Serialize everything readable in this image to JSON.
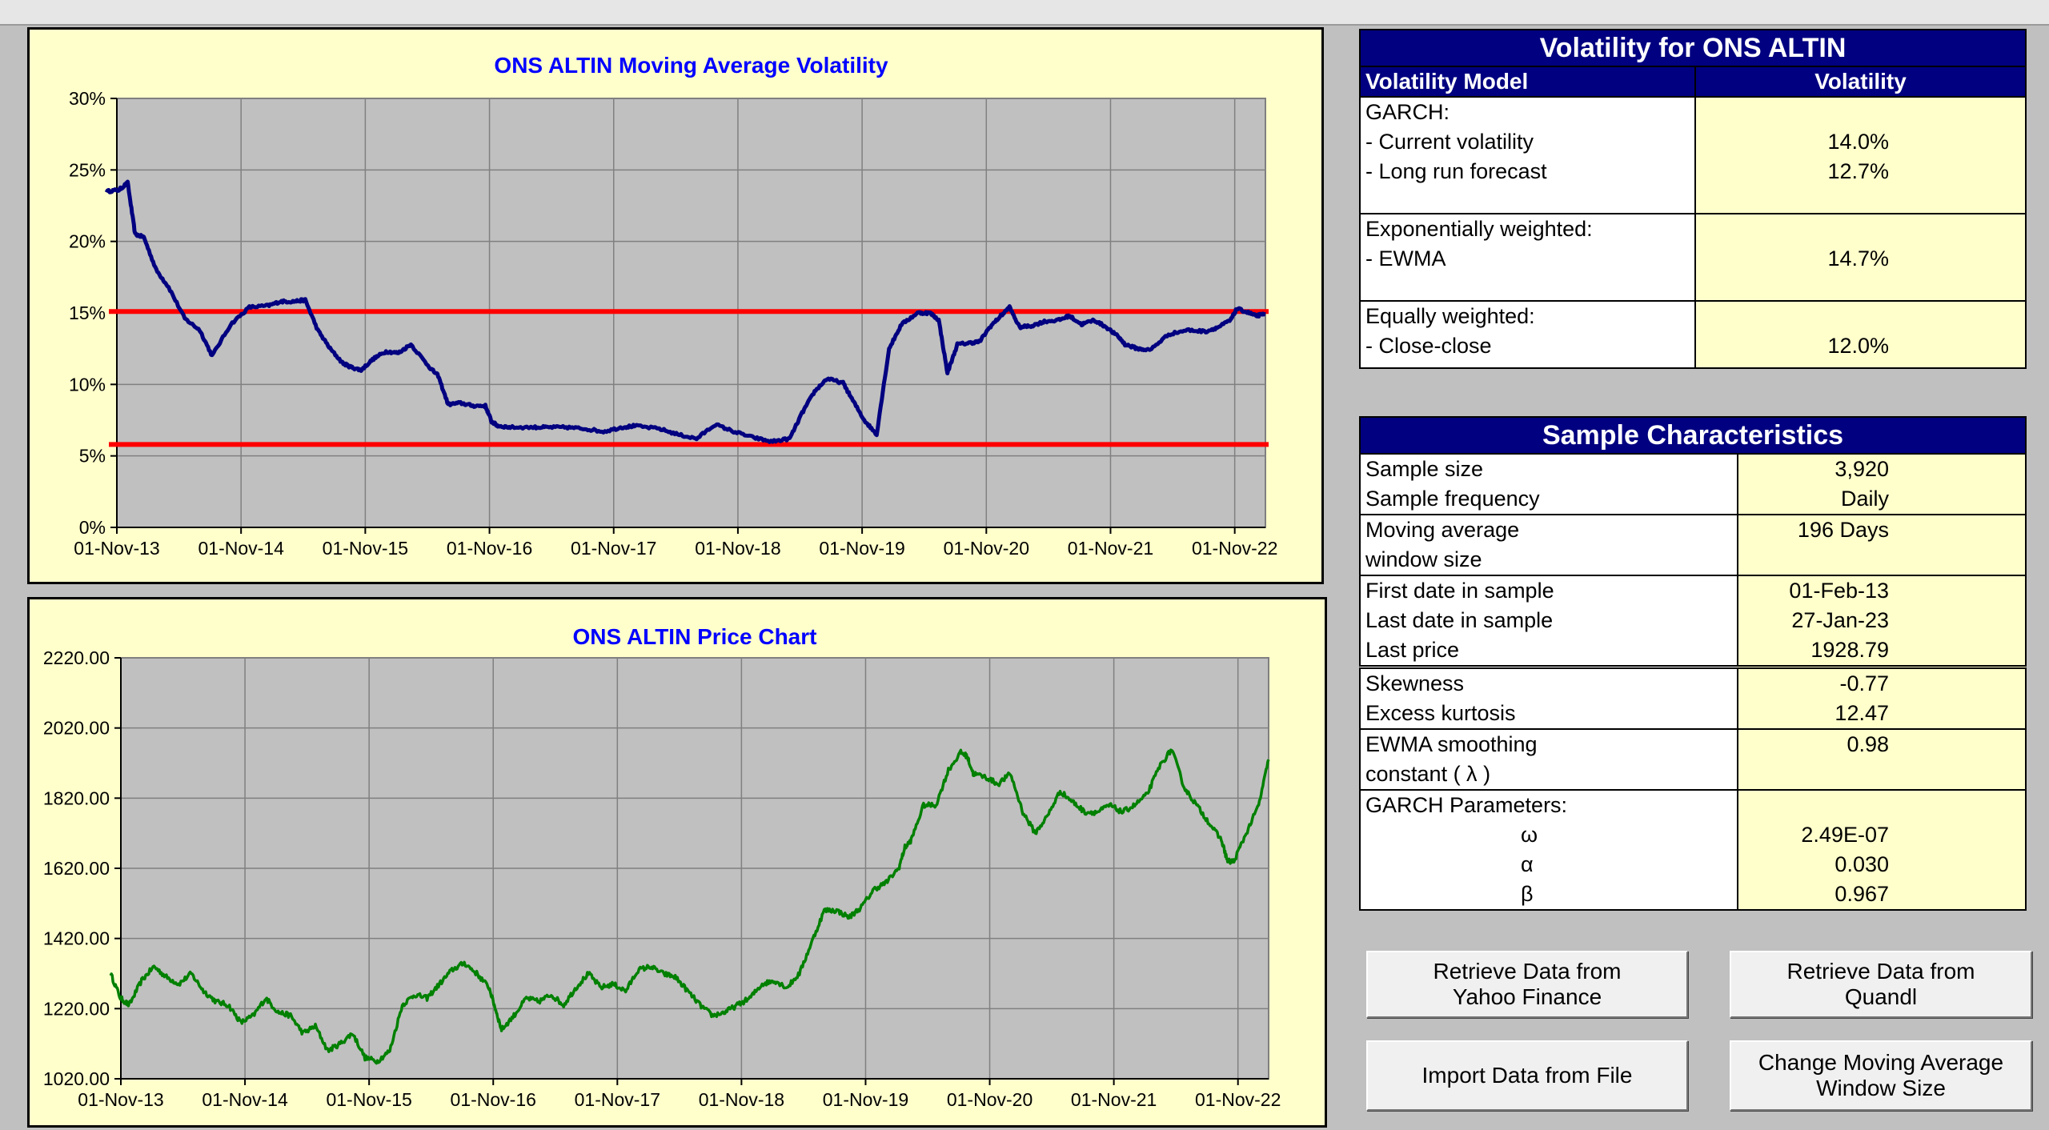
{
  "vol_chart": {
    "title": "ONS ALTIN Moving Average Volatility",
    "y_ticks": [
      "30%",
      "25%",
      "20%",
      "15%",
      "10%",
      "5%",
      "0%"
    ],
    "x_ticks": [
      "01-Nov-13",
      "01-Nov-14",
      "01-Nov-15",
      "01-Nov-16",
      "01-Nov-17",
      "01-Nov-18",
      "01-Nov-19",
      "01-Nov-20",
      "01-Nov-21",
      "01-Nov-22"
    ]
  },
  "price_chart": {
    "title": "ONS ALTIN Price Chart",
    "y_ticks": [
      "2220.00",
      "2020.00",
      "1820.00",
      "1620.00",
      "1420.00",
      "1220.00",
      "1020.00"
    ],
    "x_ticks": [
      "01-Nov-13",
      "01-Nov-14",
      "01-Nov-15",
      "01-Nov-16",
      "01-Nov-17",
      "01-Nov-18",
      "01-Nov-19",
      "01-Nov-20",
      "01-Nov-21",
      "01-Nov-22"
    ]
  },
  "chart_data": [
    {
      "type": "line",
      "title": "ONS ALTIN Moving Average Volatility",
      "ylim": [
        0,
        30
      ],
      "ytick_suffix": "%",
      "grid": true,
      "legend": "none",
      "colors": {
        "series": "#000080",
        "bands": "#ff0000",
        "plot_bg": "#c0c0c0"
      },
      "x_axis": "dates 01-Nov-13 to 01-Nov-22",
      "horizontal_lines": [
        15.1,
        5.8
      ],
      "series": [
        {
          "x": [
            2013.75,
            2013.85,
            2013.92,
            2013.98,
            2014.05,
            2014.15,
            2014.25,
            2014.38,
            2014.5,
            2014.6,
            2014.75,
            2014.9,
            2015.05,
            2015.15,
            2015.25,
            2015.35,
            2015.45,
            2015.55,
            2015.65,
            2015.72,
            2015.8,
            2015.9,
            2016.0,
            2016.1,
            2016.2,
            2016.35,
            2016.42,
            2016.5,
            2016.6,
            2016.7,
            2016.8,
            2016.85,
            2016.9,
            2017.0,
            2017.2,
            2017.3,
            2017.45,
            2017.6,
            2017.75,
            2017.9,
            2018.0,
            2018.2,
            2018.35,
            2018.5,
            2018.65,
            2018.8,
            2018.95,
            2019.1,
            2019.25,
            2019.35,
            2019.45,
            2019.55,
            2019.68,
            2019.75,
            2019.85,
            2019.95,
            2020.05,
            2020.15,
            2020.28,
            2020.38,
            2020.45,
            2020.52,
            2020.6,
            2020.7,
            2020.78,
            2020.86,
            2020.95,
            2021.02,
            2021.1,
            2021.2,
            2021.3,
            2021.42,
            2021.5,
            2021.6,
            2021.7,
            2021.8,
            2021.9,
            2021.95,
            2022.05,
            2022.15,
            2022.3,
            2022.45,
            2022.6,
            2022.7,
            2022.8,
            2022.85,
            2022.95,
            2023.0,
            2023.08
          ],
          "y": [
            23.5,
            23.6,
            24.1,
            20.5,
            20.3,
            18.0,
            16.8,
            14.6,
            13.8,
            12.0,
            14.2,
            15.4,
            15.5,
            15.8,
            15.8,
            15.9,
            13.8,
            12.5,
            11.5,
            11.2,
            11.0,
            11.8,
            12.3,
            12.2,
            12.8,
            11.2,
            10.6,
            8.6,
            8.7,
            8.5,
            8.5,
            7.4,
            7.1,
            7.0,
            7.0,
            7.0,
            7.0,
            6.9,
            6.7,
            7.0,
            7.1,
            6.9,
            6.5,
            6.2,
            7.2,
            6.7,
            6.3,
            6.0,
            6.2,
            8.0,
            9.5,
            10.4,
            10.1,
            9.0,
            7.5,
            6.5,
            12.5,
            14.2,
            15.0,
            15.0,
            14.5,
            10.8,
            12.8,
            12.9,
            13.0,
            14.0,
            14.8,
            15.4,
            14.0,
            14.1,
            14.4,
            14.5,
            14.8,
            14.2,
            14.5,
            14.0,
            13.3,
            12.8,
            12.5,
            12.4,
            13.5,
            13.8,
            13.7,
            14.0,
            14.5,
            15.3,
            15.0,
            14.8,
            14.9
          ]
        }
      ]
    },
    {
      "type": "line",
      "title": "ONS ALTIN Price Chart",
      "ylim": [
        1020,
        2220
      ],
      "grid": true,
      "legend": "none",
      "colors": {
        "series": "#008000",
        "plot_bg": "#c0c0c0"
      },
      "x_axis": "dates 01-Nov-13 to 01-Nov-22",
      "series": [
        {
          "x": [
            2013.75,
            2013.83,
            2013.9,
            2014.0,
            2014.1,
            2014.2,
            2014.3,
            2014.4,
            2014.5,
            2014.6,
            2014.7,
            2014.8,
            2014.9,
            2015.0,
            2015.1,
            2015.2,
            2015.3,
            2015.4,
            2015.5,
            2015.6,
            2015.7,
            2015.8,
            2015.9,
            2016.0,
            2016.1,
            2016.2,
            2016.3,
            2016.4,
            2016.5,
            2016.6,
            2016.7,
            2016.8,
            2016.85,
            2016.9,
            2017.0,
            2017.1,
            2017.2,
            2017.3,
            2017.4,
            2017.5,
            2017.6,
            2017.7,
            2017.8,
            2017.9,
            2018.0,
            2018.1,
            2018.2,
            2018.3,
            2018.4,
            2018.5,
            2018.6,
            2018.7,
            2018.8,
            2018.9,
            2019.0,
            2019.1,
            2019.2,
            2019.3,
            2019.4,
            2019.5,
            2019.6,
            2019.7,
            2019.8,
            2019.9,
            2020.0,
            2020.1,
            2020.15,
            2020.2,
            2020.3,
            2020.4,
            2020.5,
            2020.6,
            2020.65,
            2020.7,
            2020.8,
            2020.9,
            2021.0,
            2021.1,
            2021.2,
            2021.3,
            2021.4,
            2021.5,
            2021.6,
            2021.7,
            2021.8,
            2021.9,
            2022.0,
            2022.1,
            2022.2,
            2022.3,
            2022.4,
            2022.5,
            2022.6,
            2022.7,
            2022.75,
            2022.8,
            2022.9,
            2023.0,
            2023.08
          ],
          "y": [
            1320,
            1250,
            1230,
            1300,
            1340,
            1310,
            1290,
            1320,
            1270,
            1240,
            1230,
            1180,
            1200,
            1250,
            1210,
            1200,
            1150,
            1170,
            1100,
            1120,
            1150,
            1080,
            1070,
            1100,
            1230,
            1260,
            1250,
            1290,
            1330,
            1350,
            1320,
            1280,
            1220,
            1160,
            1200,
            1250,
            1240,
            1260,
            1230,
            1280,
            1320,
            1280,
            1290,
            1270,
            1330,
            1340,
            1320,
            1310,
            1270,
            1230,
            1200,
            1210,
            1230,
            1250,
            1290,
            1300,
            1280,
            1320,
            1410,
            1500,
            1500,
            1480,
            1510,
            1560,
            1580,
            1620,
            1680,
            1700,
            1800,
            1800,
            1900,
            1950,
            1940,
            1890,
            1880,
            1860,
            1890,
            1780,
            1720,
            1770,
            1840,
            1810,
            1780,
            1780,
            1800,
            1780,
            1800,
            1830,
            1910,
            1960,
            1850,
            1800,
            1750,
            1700,
            1640,
            1640,
            1720,
            1800,
            1930
          ]
        }
      ]
    }
  ],
  "volatility_panel": {
    "title": "Volatility for ONS ALTIN",
    "col_model": "Volatility Model",
    "col_vol": "Volatility",
    "garch_label": "GARCH:",
    "current_label": "- Current volatility",
    "current_value": "14.0%",
    "longrun_label": "- Long run forecast",
    "longrun_value": "12.7%",
    "exp_label": "Exponentially weighted:",
    "ewma_label": "- EWMA",
    "ewma_value": "14.7%",
    "eq_label": "Equally weighted:",
    "cc_label": "- Close-close",
    "cc_value": "12.0%"
  },
  "sample_panel": {
    "title": "Sample Characteristics",
    "size_label": "Sample size",
    "size_value": "3,920",
    "freq_label": "Sample frequency",
    "freq_value": "Daily",
    "window_label1": "Moving average",
    "window_label2": "window size",
    "window_value": "196 Days",
    "first_label": "First date in sample",
    "first_value": "01-Feb-13",
    "last_label": "Last date in sample",
    "last_value": "27-Jan-23",
    "price_label": "Last price",
    "price_value": "1928.79",
    "skew_label": "Skewness",
    "skew_value": "-0.77",
    "kurt_label": "Excess kurtosis",
    "kurt_value": "12.47",
    "ewma_label1": "EWMA smoothing",
    "ewma_label2": "constant ( λ )",
    "ewma_value": "0.98",
    "garch_label": "GARCH Parameters:",
    "omega_label": "ω",
    "omega_value": "2.49E-07",
    "alpha_label": "α",
    "alpha_value": "0.030",
    "beta_label": "β",
    "beta_value": "0.967"
  },
  "buttons": {
    "yahoo": "Retrieve Data from\nYahoo Finance",
    "quandl": "Retrieve Data from\nQuandl",
    "import": "Import Data from File",
    "window": "Change Moving Average\nWindow Size"
  }
}
